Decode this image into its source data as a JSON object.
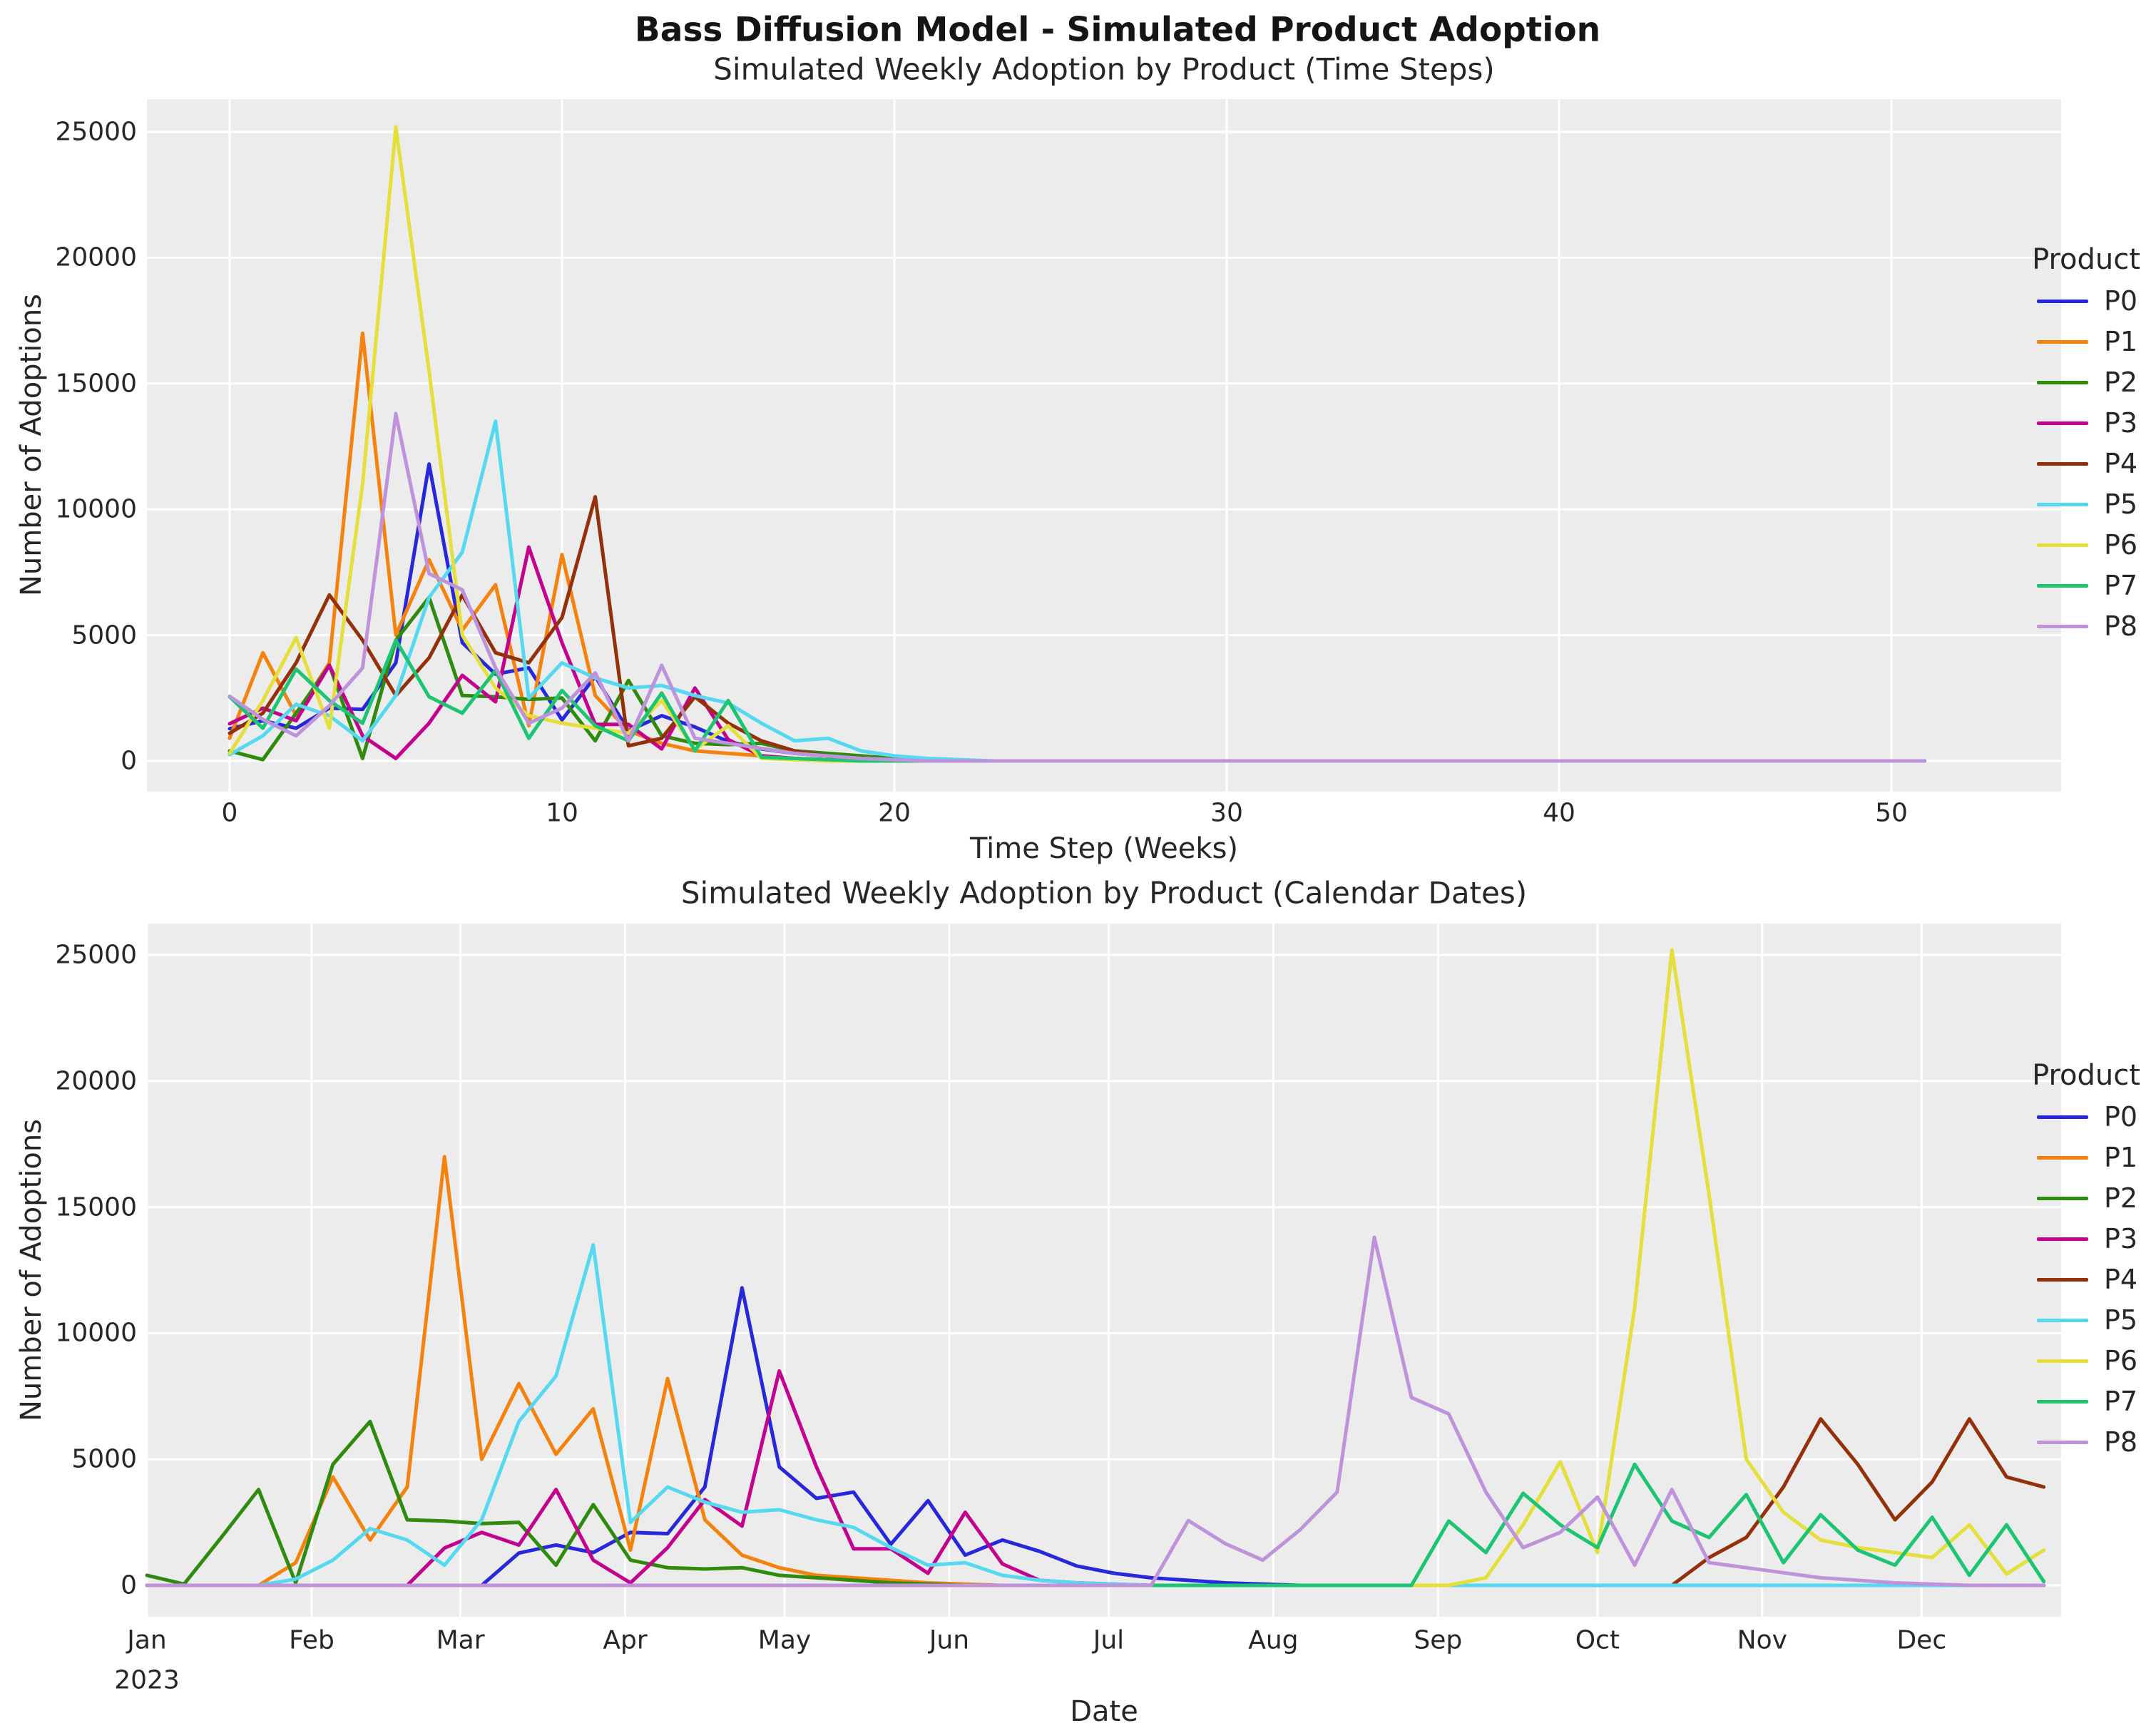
{
  "figure": {
    "title": "Bass Diffusion Model - Simulated Product Adoption"
  },
  "top_chart": {
    "subtitle": "Simulated Weekly Adoption by Product (Time Steps)",
    "xlabel": "Time Step (Weeks)",
    "ylabel": "Number of Adoptions",
    "xtick_labels": [
      "0",
      "10",
      "20",
      "30",
      "40",
      "50"
    ],
    "ytick_labels": [
      "0",
      "5000",
      "10000",
      "15000",
      "20000",
      "25000"
    ]
  },
  "bottom_chart": {
    "subtitle": "Simulated Weekly Adoption by Product (Calendar Dates)",
    "xlabel": "Date",
    "ylabel": "Number of Adoptions",
    "xtick_labels": [
      "Jan",
      "Feb",
      "Mar",
      "Apr",
      "May",
      "Jun",
      "Jul",
      "Aug",
      "Sep",
      "Oct",
      "Nov",
      "Dec"
    ],
    "first_tick_year": "2023",
    "ytick_labels": [
      "0",
      "5000",
      "10000",
      "15000",
      "20000",
      "25000"
    ]
  },
  "legend": {
    "title": "Product",
    "items": [
      "P0",
      "P1",
      "P2",
      "P3",
      "P4",
      "P5",
      "P6",
      "P7",
      "P8"
    ]
  },
  "chart_data": {
    "type": "line",
    "title": "Bass Diffusion Model - Simulated Product Adoption",
    "ylabel": "Number of Adoptions",
    "ylim": [
      0,
      25000
    ],
    "yticks": [
      0,
      5000,
      10000,
      15000,
      20000,
      25000
    ],
    "top_x": "time step in weeks since product launch, 0-51",
    "top_xticks_weeks": [
      0,
      10,
      20,
      30,
      40,
      50
    ],
    "bottom_x": "calendar weeks of 2023, zero outside each product's active window",
    "month_labels": [
      "Jan",
      "Feb",
      "Mar",
      "Apr",
      "May",
      "Jun",
      "Jul",
      "Aug",
      "Sep",
      "Oct",
      "Nov",
      "Dec"
    ],
    "month_day_offsets": [
      0,
      31,
      59,
      90,
      120,
      151,
      181,
      212,
      243,
      273,
      304,
      334
    ],
    "year": "2023",
    "weeks_total": 52,
    "grid": true,
    "legend_position": "right",
    "series": [
      {
        "name": "P0",
        "color": "#2727dc",
        "launch_week": 10,
        "values": [
          1280,
          1600,
          1300,
          2100,
          2050,
          3900,
          11800,
          4700,
          3450,
          3700,
          1630,
          3360,
          1200,
          1800,
          1350,
          770,
          480,
          300,
          200,
          100,
          50
        ]
      },
      {
        "name": "P1",
        "color": "#f5820d",
        "launch_week": 4,
        "values": [
          900,
          4300,
          1800,
          3900,
          17000,
          5000,
          8000,
          5200,
          7000,
          1400,
          8200,
          2600,
          1200,
          700,
          400,
          300,
          200,
          100,
          50
        ]
      },
      {
        "name": "P2",
        "color": "#2e8b0e",
        "launch_week": 0,
        "values": [
          400,
          50,
          1900,
          3800,
          100,
          4800,
          6500,
          2600,
          2550,
          2450,
          2500,
          800,
          3200,
          1000,
          700,
          650,
          700,
          400,
          300,
          200,
          100,
          50
        ]
      },
      {
        "name": "P3",
        "color": "#c4008f",
        "launch_week": 8,
        "values": [
          1480,
          2100,
          1600,
          3800,
          1000,
          100,
          1500,
          3400,
          2350,
          8500,
          4700,
          1450,
          1450,
          480,
          2900,
          850,
          200,
          100,
          50
        ]
      },
      {
        "name": "P4",
        "color": "#94300a",
        "launch_week": 42,
        "values": [
          1100,
          1900,
          3900,
          6600,
          4800,
          2600,
          4100,
          6600,
          4300,
          3900,
          5700,
          10500,
          600,
          900,
          2550,
          1500,
          800,
          400,
          200,
          100,
          50
        ]
      },
      {
        "name": "P5",
        "color": "#55d9f0",
        "launch_week": 4,
        "values": [
          250,
          1000,
          2250,
          1800,
          800,
          2600,
          6500,
          8300,
          13500,
          2500,
          3900,
          3300,
          2900,
          3000,
          2600,
          2300,
          1500,
          800,
          900,
          400,
          200,
          100,
          50
        ]
      },
      {
        "name": "P6",
        "color": "#e4df3b",
        "launch_week": 36,
        "values": [
          300,
          2400,
          4900,
          1300,
          11000,
          25200,
          15500,
          5000,
          2900,
          1800,
          1500,
          1300,
          1100,
          2400,
          450,
          1400,
          100,
          50
        ]
      },
      {
        "name": "P7",
        "color": "#1dc573",
        "launch_week": 35,
        "values": [
          2550,
          1300,
          3650,
          2400,
          1500,
          4800,
          2550,
          1900,
          3600,
          900,
          2800,
          1400,
          800,
          2700,
          400,
          2400,
          150,
          100,
          50
        ]
      },
      {
        "name": "P8",
        "color": "#bf93dc",
        "launch_week": 28,
        "values": [
          2570,
          1650,
          1000,
          2200,
          3700,
          13800,
          7450,
          6800,
          3700,
          1500,
          2100,
          3500,
          800,
          3800,
          900,
          700,
          500,
          300,
          200,
          100,
          50
        ]
      }
    ]
  }
}
